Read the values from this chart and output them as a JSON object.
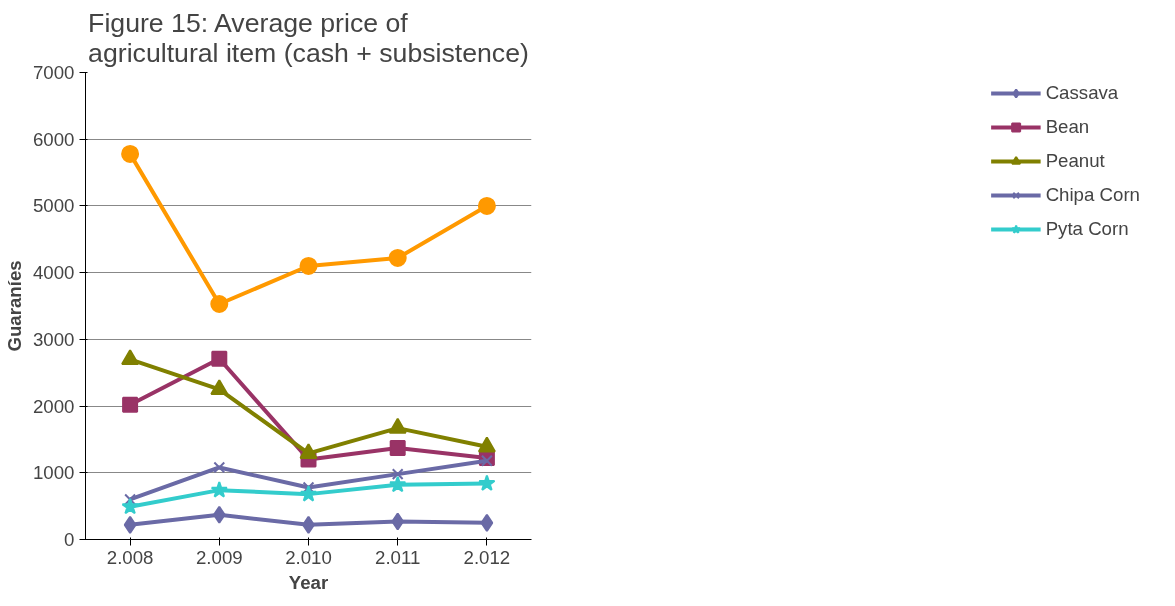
{
  "chart_data": {
    "type": "line",
    "title": "Figure 15: Average price of agricultural item (cash + subsistence)",
    "xlabel": "Year",
    "ylabel": "Guaraníes",
    "categories": [
      "2.008",
      "2.009",
      "2.010",
      "2.011",
      "2.012"
    ],
    "ylim": [
      0,
      7000
    ],
    "yticks": [
      0,
      1000,
      2000,
      3000,
      4000,
      5000,
      6000,
      7000
    ],
    "grid": "y",
    "legend": "right",
    "series": [
      {
        "name": "Cassava",
        "color": "#6a6aa6",
        "marker": "diamond",
        "values": [
          220,
          370,
          220,
          270,
          250
        ]
      },
      {
        "name": "Bean",
        "color": "#993366",
        "marker": "square",
        "values": [
          2020,
          2710,
          1200,
          1370,
          1220
        ]
      },
      {
        "name": "Peanut",
        "color": "#808000",
        "marker": "triangle",
        "values": [
          2700,
          2250,
          1290,
          1670,
          1390
        ]
      },
      {
        "name": "Chipa Corn",
        "color": "#6a6aa6",
        "marker": "cross",
        "values": [
          600,
          1080,
          780,
          980,
          1180
        ]
      },
      {
        "name": "Pyta Corn",
        "color": "#33cccc",
        "marker": "star",
        "values": [
          490,
          740,
          680,
          820,
          840
        ]
      },
      {
        "color": "#ff9900",
        "marker": "circle",
        "values": [
          5780,
          3530,
          4100,
          4220,
          5000
        ]
      }
    ]
  }
}
